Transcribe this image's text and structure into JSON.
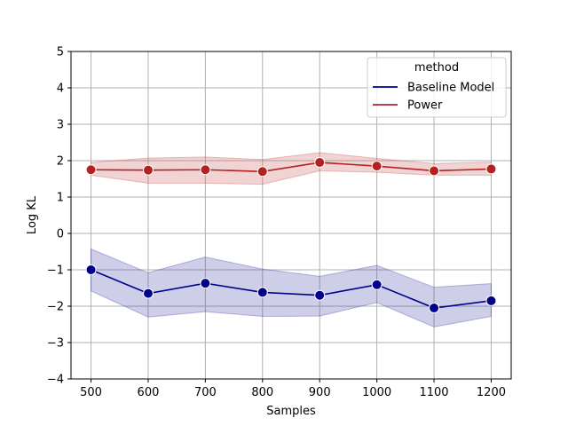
{
  "chart_data": {
    "type": "line",
    "xlabel": "Samples",
    "ylabel": "Log KL",
    "xlim": [
      465,
      1235
    ],
    "ylim": [
      -4,
      5
    ],
    "x_ticks": [
      500,
      600,
      700,
      800,
      900,
      1000,
      1100,
      1200
    ],
    "y_ticks": [
      -4,
      -3,
      -2,
      -1,
      0,
      1,
      2,
      3,
      4,
      5
    ],
    "grid": true,
    "legend": {
      "title": "method",
      "placement": "top-right"
    },
    "x": [
      500,
      600,
      700,
      800,
      900,
      1000,
      1100,
      1200
    ],
    "series": [
      {
        "name": "Baseline Model",
        "color": "#00008b",
        "band_color": "#3c3ca8",
        "values": [
          -1.0,
          -1.65,
          -1.37,
          -1.62,
          -1.7,
          -1.41,
          -2.05,
          -1.85
        ],
        "upper": [
          -0.43,
          -1.08,
          -0.65,
          -0.98,
          -1.18,
          -0.88,
          -1.48,
          -1.38
        ],
        "lower": [
          -1.58,
          -2.3,
          -2.15,
          -2.28,
          -2.27,
          -1.9,
          -2.57,
          -2.28
        ]
      },
      {
        "name": "Power",
        "color": "#b22222",
        "band_color": "#c85050",
        "values": [
          1.75,
          1.74,
          1.75,
          1.7,
          1.95,
          1.85,
          1.72,
          1.77
        ],
        "upper": [
          1.95,
          2.07,
          2.1,
          2.03,
          2.22,
          2.06,
          1.92,
          1.96
        ],
        "lower": [
          1.6,
          1.38,
          1.38,
          1.35,
          1.72,
          1.68,
          1.6,
          1.6
        ]
      }
    ]
  }
}
